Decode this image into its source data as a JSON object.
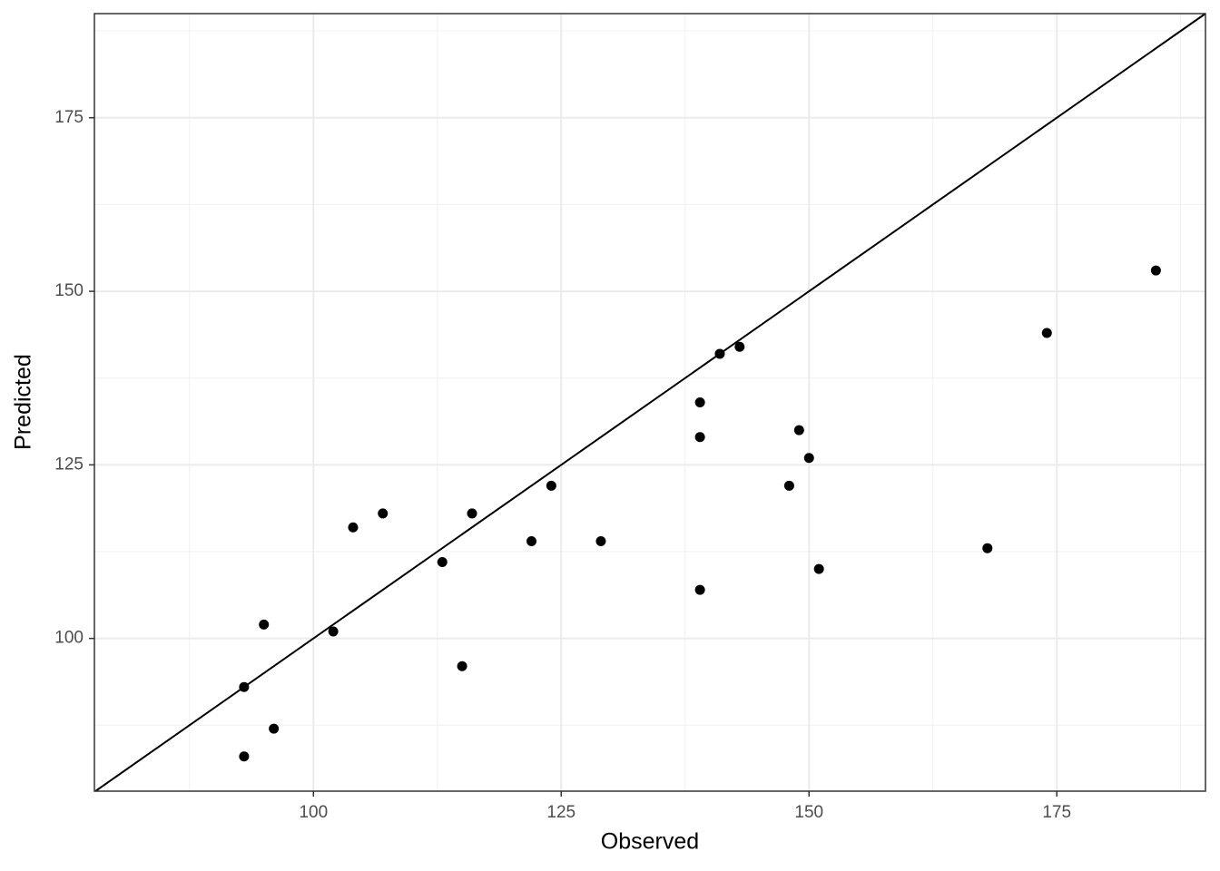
{
  "chart_data": {
    "type": "scatter",
    "x_label": "Observed",
    "y_label": "Predicted",
    "x": [
      93,
      93,
      95,
      96,
      102,
      104,
      107,
      113,
      115,
      116,
      122,
      124,
      129,
      139,
      139,
      139,
      141,
      143,
      148,
      149,
      150,
      151,
      168,
      174,
      185
    ],
    "series": [
      {
        "color": "#000000",
        "values": [
          93,
          83,
          102,
          87,
          101,
          116,
          118,
          111,
          96,
          118,
          114,
          122,
          114,
          107,
          129,
          134,
          141,
          142,
          122,
          130,
          126,
          110,
          113,
          144,
          153
        ]
      }
    ],
    "xlim": [
      77.9,
      190
    ],
    "ylim": [
      78,
      190
    ],
    "xticks": [
      100,
      125,
      150,
      175
    ],
    "yticks": [
      100,
      125,
      150,
      175
    ],
    "grid": true
  }
}
